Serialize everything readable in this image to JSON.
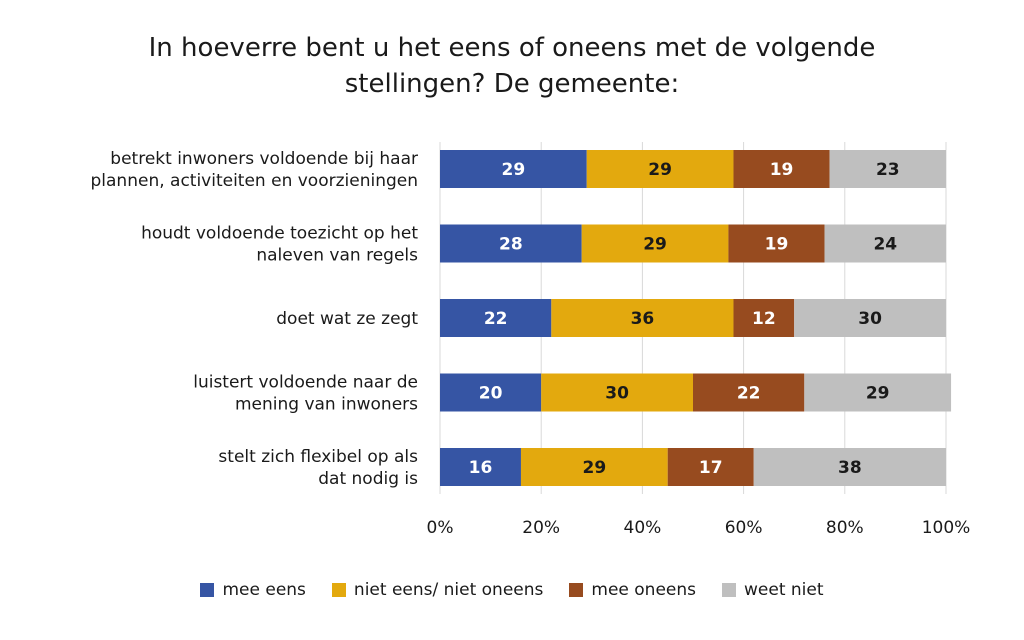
{
  "chart_data": {
    "type": "bar",
    "orientation": "horizontal",
    "stacked": true,
    "title_lines": [
      "In hoeverre bent u het eens of oneens met de volgende",
      "stellingen? De gemeente:"
    ],
    "categories": [
      [
        "betrekt inwoners voldoende bij haar",
        "plannen, activiteiten en voorzieningen"
      ],
      [
        "houdt voldoende toezicht op het",
        "naleven van regels"
      ],
      [
        "doet wat ze zegt"
      ],
      [
        "luistert voldoende naar de",
        "mening van inwoners"
      ],
      [
        "stelt zich flexibel op als",
        "dat nodig is"
      ]
    ],
    "series": [
      {
        "name": "mee eens",
        "color": "#3655a4",
        "label_color": "#ffffff",
        "values": [
          29,
          28,
          22,
          20,
          16
        ]
      },
      {
        "name": "niet eens/ niet oneens",
        "color": "#e3a90e",
        "label_color": "#1a1a1a",
        "values": [
          29,
          29,
          36,
          30,
          29
        ]
      },
      {
        "name": "mee oneens",
        "color": "#974b1f",
        "label_color": "#ffffff",
        "values": [
          19,
          19,
          12,
          22,
          17
        ]
      },
      {
        "name": "weet niet",
        "color": "#bfbfbf",
        "label_color": "#1a1a1a",
        "values": [
          23,
          24,
          30,
          29,
          38
        ]
      }
    ],
    "xlim": [
      0,
      100
    ],
    "xticks": [
      "0%",
      "20%",
      "40%",
      "60%",
      "80%",
      "100%"
    ],
    "grid": true,
    "legend_position": "bottom"
  }
}
